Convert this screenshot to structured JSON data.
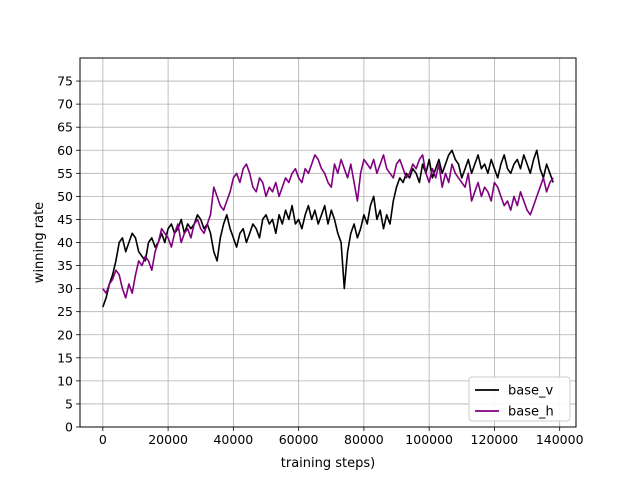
{
  "chart_data": {
    "type": "line",
    "title": "",
    "xlabel": "training steps)",
    "ylabel": "winning rate",
    "xlim": [
      -7000,
      145000
    ],
    "ylim": [
      0,
      80
    ],
    "xticks": [
      0,
      20000,
      40000,
      60000,
      80000,
      100000,
      120000,
      140000
    ],
    "yticks": [
      0,
      5,
      10,
      15,
      20,
      25,
      30,
      35,
      40,
      45,
      50,
      55,
      60,
      65,
      70,
      75
    ],
    "grid": true,
    "legend": "lower-right",
    "colors": {
      "base_v": "#000000",
      "base_h": "#800080"
    },
    "series": [
      {
        "name": "base_v",
        "color": "#000000",
        "x": [
          0,
          1000,
          2000,
          3000,
          4000,
          5000,
          6000,
          7000,
          8000,
          9000,
          10000,
          11000,
          12000,
          13000,
          14000,
          15000,
          16000,
          17000,
          18000,
          19000,
          20000,
          21000,
          22000,
          23000,
          24000,
          25000,
          26000,
          27000,
          28000,
          29000,
          30000,
          31000,
          32000,
          33000,
          34000,
          35000,
          36000,
          37000,
          38000,
          39000,
          40000,
          41000,
          42000,
          43000,
          44000,
          45000,
          46000,
          47000,
          48000,
          49000,
          50000,
          51000,
          52000,
          53000,
          54000,
          55000,
          56000,
          57000,
          58000,
          59000,
          60000,
          61000,
          62000,
          63000,
          64000,
          65000,
          66000,
          67000,
          68000,
          69000,
          70000,
          71000,
          72000,
          73000,
          74000,
          75000,
          76000,
          77000,
          78000,
          79000,
          80000,
          81000,
          82000,
          83000,
          84000,
          85000,
          86000,
          87000,
          88000,
          89000,
          90000,
          91000,
          92000,
          93000,
          94000,
          95000,
          96000,
          97000,
          98000,
          99000,
          100000,
          101000,
          102000,
          103000,
          104000,
          105000,
          106000,
          107000,
          108000,
          109000,
          110000,
          111000,
          112000,
          113000,
          114000,
          115000,
          116000,
          117000,
          118000,
          119000,
          120000,
          121000,
          122000,
          123000,
          124000,
          125000,
          126000,
          127000,
          128000,
          129000,
          130000,
          131000,
          132000,
          133000,
          134000,
          135000,
          136000,
          137000,
          138000
        ],
        "y": [
          26,
          28,
          31,
          33,
          36,
          40,
          41,
          38,
          40,
          42,
          41,
          38,
          37,
          36,
          40,
          41,
          39,
          40,
          42,
          40,
          43,
          44,
          42,
          43,
          45,
          42,
          44,
          43,
          44,
          46,
          45,
          43,
          44,
          42,
          38,
          36,
          41,
          44,
          46,
          43,
          41,
          39,
          42,
          43,
          40,
          42,
          44,
          43,
          41,
          45,
          46,
          44,
          45,
          42,
          46,
          44,
          47,
          45,
          48,
          44,
          45,
          43,
          46,
          48,
          45,
          47,
          44,
          46,
          48,
          44,
          47,
          45,
          42,
          40,
          30,
          38,
          42,
          44,
          41,
          43,
          46,
          44,
          48,
          50,
          45,
          47,
          43,
          46,
          44,
          49,
          52,
          54,
          53,
          55,
          54,
          56,
          55,
          53,
          57,
          55,
          58,
          54,
          56,
          58,
          55,
          57,
          59,
          60,
          58,
          57,
          54,
          56,
          58,
          55,
          57,
          59,
          56,
          57,
          55,
          58,
          56,
          54,
          57,
          59,
          56,
          55,
          57,
          58,
          56,
          59,
          57,
          55,
          58,
          60,
          56,
          54,
          57,
          55,
          53
        ]
      },
      {
        "name": "base_h",
        "color": "#800080",
        "x": [
          0,
          1000,
          2000,
          3000,
          4000,
          5000,
          6000,
          7000,
          8000,
          9000,
          10000,
          11000,
          12000,
          13000,
          14000,
          15000,
          16000,
          17000,
          18000,
          19000,
          20000,
          21000,
          22000,
          23000,
          24000,
          25000,
          26000,
          27000,
          28000,
          29000,
          30000,
          31000,
          32000,
          33000,
          34000,
          35000,
          36000,
          37000,
          38000,
          39000,
          40000,
          41000,
          42000,
          43000,
          44000,
          45000,
          46000,
          47000,
          48000,
          49000,
          50000,
          51000,
          52000,
          53000,
          54000,
          55000,
          56000,
          57000,
          58000,
          59000,
          60000,
          61000,
          62000,
          63000,
          64000,
          65000,
          66000,
          67000,
          68000,
          69000,
          70000,
          71000,
          72000,
          73000,
          74000,
          75000,
          76000,
          77000,
          78000,
          79000,
          80000,
          81000,
          82000,
          83000,
          84000,
          85000,
          86000,
          87000,
          88000,
          89000,
          90000,
          91000,
          92000,
          93000,
          94000,
          95000,
          96000,
          97000,
          98000,
          99000,
          100000,
          101000,
          102000,
          103000,
          104000,
          105000,
          106000,
          107000,
          108000,
          109000,
          110000,
          111000,
          112000,
          113000,
          114000,
          115000,
          116000,
          117000,
          118000,
          119000,
          120000,
          121000,
          122000,
          123000,
          124000,
          125000,
          126000,
          127000,
          128000,
          129000,
          130000,
          131000,
          132000,
          133000,
          134000,
          135000,
          136000,
          137000,
          138000
        ],
        "y": [
          30,
          29,
          31,
          32,
          34,
          33,
          30,
          28,
          31,
          29,
          33,
          36,
          35,
          37,
          36,
          34,
          38,
          40,
          43,
          42,
          41,
          39,
          42,
          44,
          40,
          42,
          43,
          41,
          44,
          45,
          43,
          42,
          44,
          46,
          52,
          50,
          48,
          47,
          49,
          51,
          54,
          55,
          53,
          56,
          57,
          55,
          52,
          51,
          54,
          53,
          50,
          52,
          51,
          53,
          50,
          52,
          54,
          53,
          55,
          56,
          54,
          53,
          56,
          55,
          57,
          59,
          58,
          56,
          55,
          53,
          52,
          57,
          55,
          58,
          56,
          54,
          57,
          53,
          49,
          55,
          58,
          57,
          56,
          58,
          55,
          57,
          59,
          56,
          55,
          54,
          57,
          58,
          56,
          54,
          55,
          57,
          56,
          58,
          59,
          55,
          53,
          56,
          54,
          57,
          52,
          55,
          53,
          57,
          55,
          54,
          53,
          52,
          55,
          49,
          51,
          53,
          50,
          52,
          51,
          49,
          53,
          52,
          50,
          48,
          49,
          47,
          50,
          48,
          51,
          49,
          47,
          46,
          48,
          50,
          52,
          54,
          51,
          53,
          54
        ]
      }
    ]
  }
}
